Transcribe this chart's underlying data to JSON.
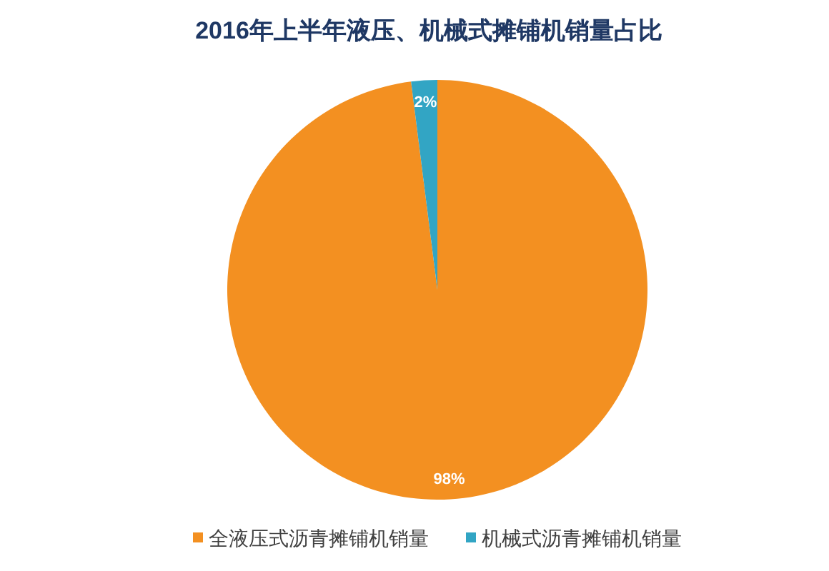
{
  "chart_data": {
    "type": "pie",
    "title": "2016年上半年液压、机械式摊铺机销量占比",
    "categories": [
      "全液压式沥青摊铺机销量",
      "机械式沥青摊铺机销量"
    ],
    "values": [
      98,
      2
    ],
    "colors": [
      "#f39021",
      "#32a5c4"
    ],
    "value_labels": [
      "98%",
      "2%"
    ],
    "legend": "bottom"
  }
}
